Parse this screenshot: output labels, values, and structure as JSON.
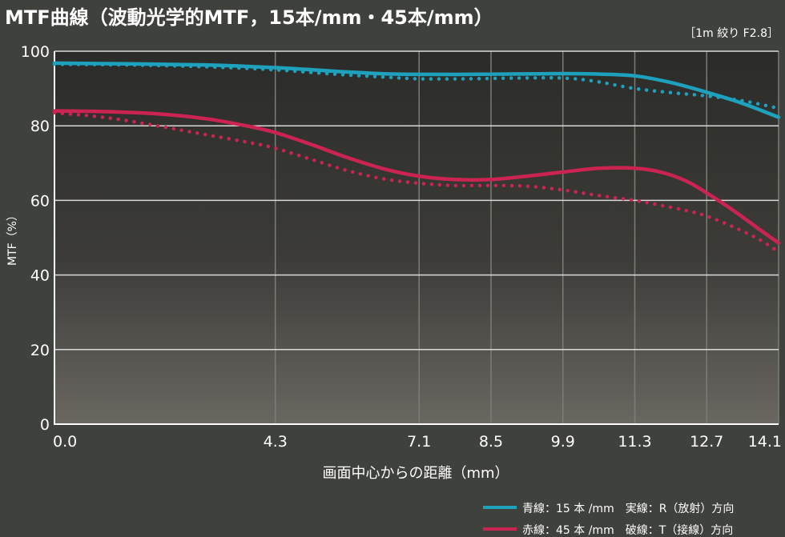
{
  "header": {
    "title": "MTF曲線（波動光学的MTF，15本/mm・45本/mm）",
    "condition": "［1m 絞り F2.8］"
  },
  "colors": {
    "background": "#3f413d",
    "blue": "#1ea1bd",
    "red": "#cc2452",
    "grid": "#d9d9d9"
  },
  "chart_data": {
    "type": "line",
    "xlabel": "画面中心からの距離（mm）",
    "ylabel": "MTF（%）",
    "xlim": [
      0,
      14.1
    ],
    "ylim": [
      0,
      100
    ],
    "x_ticks": [
      0.0,
      4.3,
      7.1,
      8.5,
      9.9,
      11.3,
      12.7,
      14.1
    ],
    "x_tick_labels": [
      "0.0",
      "4.3",
      "7.1",
      "8.5",
      "9.9",
      "11.3",
      "12.7",
      "14.1"
    ],
    "y_ticks": [
      0,
      20,
      40,
      60,
      80,
      100
    ],
    "y_tick_labels": [
      "0",
      "20",
      "40",
      "60",
      "80",
      "100"
    ],
    "grid": true,
    "legend_position": "bottom-right",
    "legend": [
      {
        "label": "青線：15 本 /mm　実線：R（放射）方向",
        "color": "#1ea1bd"
      },
      {
        "label": "赤線：45 本 /mm　破線：T（接線）方向",
        "color": "#cc2452"
      }
    ],
    "series": [
      {
        "color": "#1ea1bd",
        "style": "solid",
        "x": [
          0,
          1.5,
          3.0,
          4.3,
          5.5,
          6.5,
          7.1,
          8.0,
          9.0,
          9.9,
          10.5,
          11.3,
          12.0,
          12.7,
          13.4,
          14.1
        ],
        "y": [
          96.8,
          96.6,
          96.3,
          95.6,
          94.6,
          93.9,
          93.8,
          93.8,
          93.9,
          94.0,
          93.9,
          93.4,
          91.6,
          89.0,
          86.0,
          82.3
        ]
      },
      {
        "color": "#1ea1bd",
        "style": "dotted",
        "x": [
          0,
          1.5,
          3.0,
          4.3,
          5.5,
          6.5,
          7.1,
          8.0,
          9.0,
          9.9,
          10.5,
          11.3,
          12.0,
          12.7,
          13.4,
          14.1
        ],
        "y": [
          96.5,
          96.3,
          95.8,
          95.0,
          93.8,
          93.0,
          92.6,
          92.6,
          92.8,
          92.8,
          92.0,
          90.0,
          88.9,
          88.0,
          86.7,
          84.7
        ]
      },
      {
        "color": "#cc2452",
        "style": "solid",
        "x": [
          0,
          1.0,
          2.0,
          3.0,
          3.8,
          4.3,
          5.0,
          5.7,
          6.4,
          7.1,
          7.8,
          8.5,
          9.2,
          9.9,
          10.6,
          11.3,
          11.8,
          12.3,
          12.7,
          13.2,
          13.7,
          14.1
        ],
        "y": [
          84.0,
          83.8,
          83.2,
          81.8,
          79.8,
          78.2,
          75.0,
          71.5,
          68.5,
          66.5,
          65.6,
          65.6,
          66.5,
          67.6,
          68.6,
          68.6,
          67.6,
          65.2,
          62.0,
          57.5,
          52.5,
          48.6
        ]
      },
      {
        "color": "#cc2452",
        "style": "dotted",
        "x": [
          0,
          1.0,
          2.0,
          3.0,
          3.8,
          4.3,
          5.0,
          5.7,
          6.4,
          7.1,
          7.8,
          8.5,
          9.2,
          9.9,
          10.6,
          11.3,
          11.8,
          12.3,
          12.7,
          13.2,
          13.7,
          14.1
        ],
        "y": [
          83.5,
          82.2,
          80.0,
          77.5,
          75.5,
          74.0,
          71.0,
          68.0,
          65.8,
          64.6,
          64.0,
          64.0,
          63.8,
          62.8,
          61.3,
          60.0,
          58.7,
          57.3,
          55.8,
          53.0,
          49.7,
          46.2
        ]
      }
    ]
  }
}
